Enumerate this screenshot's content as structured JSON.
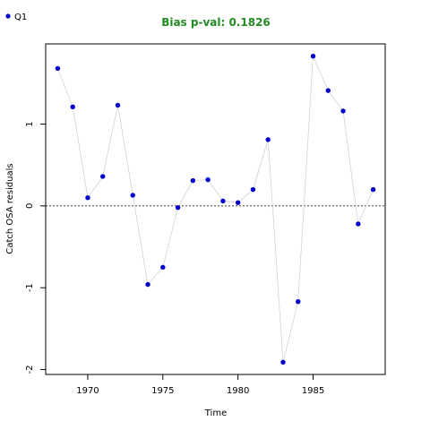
{
  "title": "Bias p-val: 0.1826",
  "title_color": "#228B22",
  "legend": {
    "label": "Q1",
    "color": "#0000CD"
  },
  "colors": {
    "point": "#0000CD",
    "line": "#D3D3D3",
    "zero_line": "#000000"
  },
  "chart_data": {
    "type": "scatter",
    "xlabel": "Time",
    "ylabel": "Catch OSA residuals",
    "xlim": [
      1967.2,
      1989.8
    ],
    "ylim": [
      -2.06,
      1.98
    ],
    "xticks": [
      1970,
      1975,
      1980,
      1985
    ],
    "yticks": [
      -2,
      -1,
      0,
      1
    ],
    "grid": false,
    "legend_position": "top-left",
    "reference_line": 0,
    "series": [
      {
        "name": "Q1",
        "x": [
          1968,
          1969,
          1970,
          1971,
          1972,
          1973,
          1974,
          1975,
          1976,
          1977,
          1978,
          1979,
          1980,
          1981,
          1982,
          1983,
          1984,
          1985,
          1986,
          1987,
          1988,
          1989
        ],
        "y": [
          1.68,
          1.21,
          0.1,
          0.36,
          1.23,
          0.13,
          -0.96,
          -0.75,
          -0.02,
          0.31,
          0.32,
          0.06,
          0.04,
          0.2,
          0.81,
          -1.91,
          -1.17,
          1.83,
          1.41,
          1.16,
          -0.22,
          0.2
        ]
      }
    ]
  }
}
